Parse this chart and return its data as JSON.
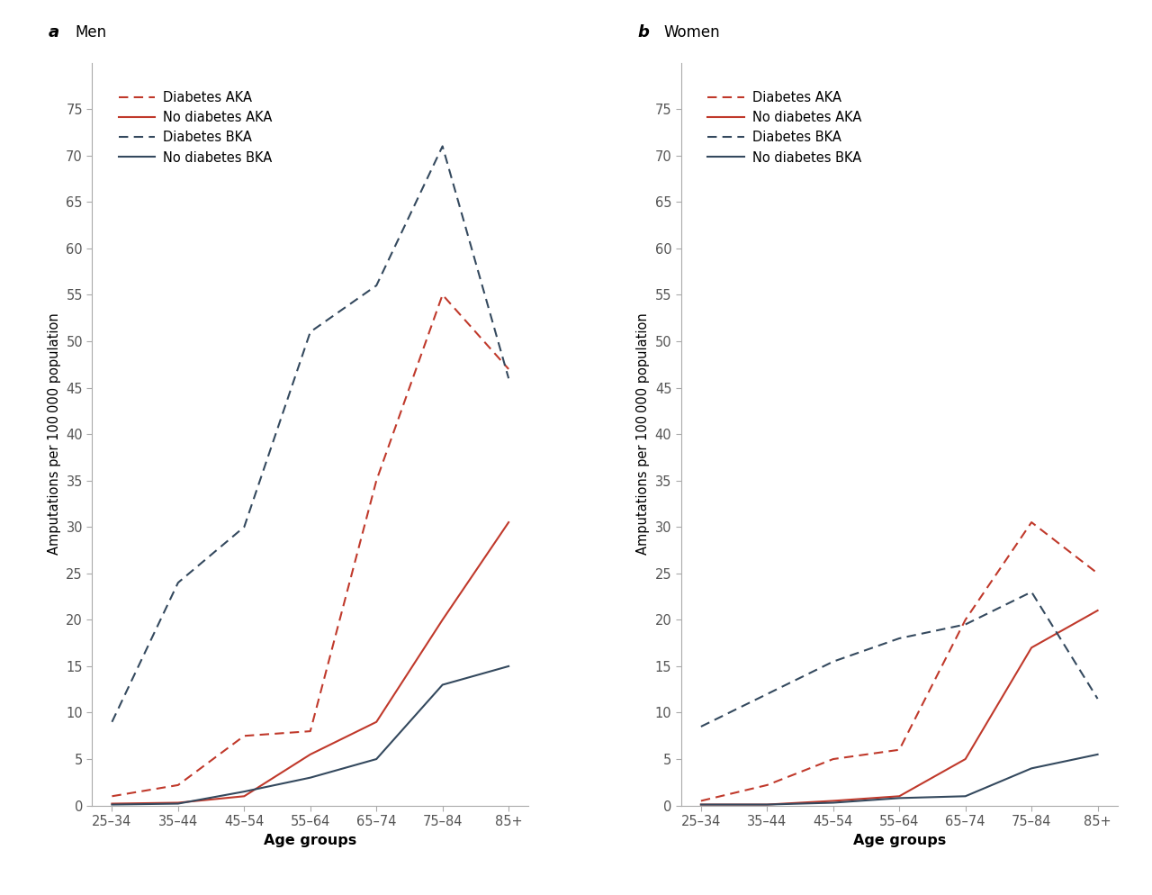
{
  "age_groups": [
    "25–34",
    "35–44",
    "45–54",
    "55–64",
    "65–74",
    "75–84",
    "85+"
  ],
  "men": {
    "diabetes_AKA": [
      1.0,
      2.2,
      7.5,
      8.0,
      35.0,
      55.0,
      47.0
    ],
    "no_diabetes_AKA": [
      0.2,
      0.3,
      1.0,
      5.5,
      9.0,
      20.0,
      30.5
    ],
    "diabetes_BKA": [
      9.0,
      24.0,
      30.0,
      51.0,
      56.0,
      71.0,
      46.0
    ],
    "no_diabetes_BKA": [
      0.1,
      0.2,
      1.5,
      3.0,
      5.0,
      13.0,
      15.0
    ]
  },
  "women": {
    "diabetes_AKA": [
      0.5,
      2.2,
      5.0,
      6.0,
      20.0,
      30.5,
      25.0
    ],
    "no_diabetes_AKA": [
      0.1,
      0.1,
      0.5,
      1.0,
      5.0,
      17.0,
      21.0
    ],
    "diabetes_BKA": [
      8.5,
      12.0,
      15.5,
      18.0,
      19.5,
      23.0,
      11.5
    ],
    "no_diabetes_BKA": [
      0.1,
      0.1,
      0.3,
      0.8,
      1.0,
      4.0,
      5.5
    ]
  },
  "red_color": "#c0392b",
  "blue_color": "#34495e",
  "ylim": [
    0,
    80
  ],
  "yticks": [
    0,
    5,
    10,
    15,
    20,
    25,
    30,
    35,
    40,
    45,
    50,
    55,
    60,
    65,
    70,
    75
  ],
  "ylabel": "Amputations per 100 000 population",
  "xlabel": "Age groups",
  "panel_a_label": "a",
  "panel_a_title": "Men",
  "panel_b_label": "b",
  "panel_b_title": "Women",
  "legend_labels": [
    "Diabetes AKA",
    "No diabetes AKA",
    "Diabetes BKA",
    "No diabetes BKA"
  ],
  "background_color": "#ffffff",
  "linewidth": 1.5,
  "spine_color": "#aaaaaa",
  "tick_color": "#555555"
}
